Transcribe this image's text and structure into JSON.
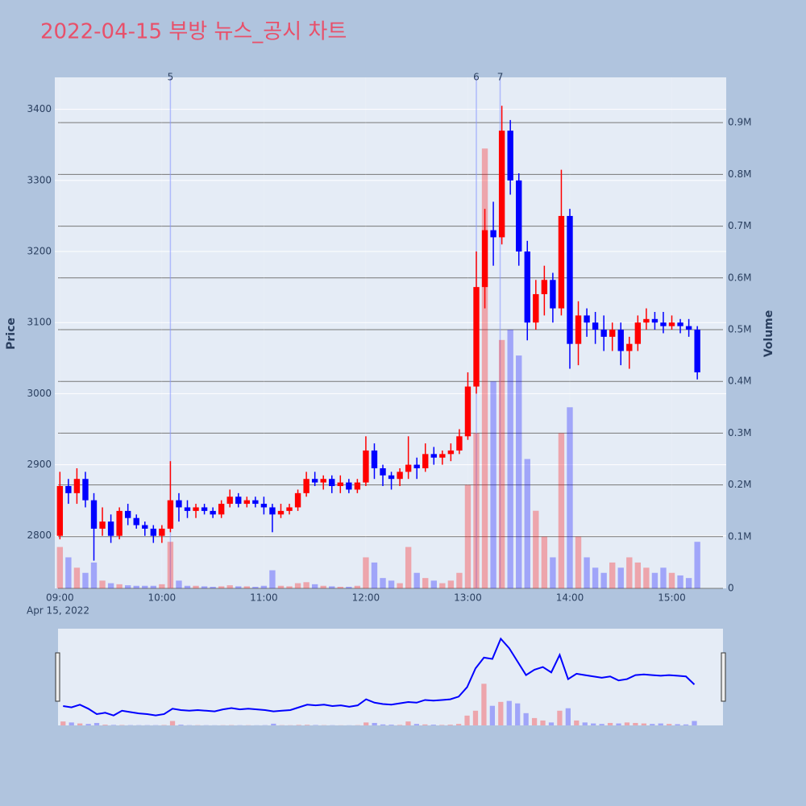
{
  "chart_data": {
    "type": "candlestick",
    "title": "2022-04-15 부방 뉴스_공시 차트",
    "y_label": "Price",
    "y2_label": "Volume",
    "x_date_label": "Apr 15, 2022",
    "increasing_color": "#ff0000",
    "decreasing_color": "#0000ff",
    "x": [
      "09:00",
      "09:05",
      "09:10",
      "09:15",
      "09:20",
      "09:25",
      "09:30",
      "09:35",
      "09:40",
      "09:45",
      "09:50",
      "09:55",
      "10:00",
      "10:05",
      "10:10",
      "10:15",
      "10:20",
      "10:25",
      "10:30",
      "10:35",
      "10:40",
      "10:45",
      "10:50",
      "10:55",
      "11:00",
      "11:05",
      "11:10",
      "11:15",
      "11:20",
      "11:25",
      "11:30",
      "11:35",
      "11:40",
      "11:45",
      "11:50",
      "11:55",
      "12:00",
      "12:05",
      "12:10",
      "12:15",
      "12:20",
      "12:25",
      "12:30",
      "12:35",
      "12:40",
      "12:45",
      "12:50",
      "12:55",
      "13:00",
      "13:05",
      "13:10",
      "13:15",
      "13:20",
      "13:25",
      "13:30",
      "13:35",
      "13:40",
      "13:45",
      "13:50",
      "13:55",
      "14:00",
      "14:05",
      "14:10",
      "14:15",
      "14:20",
      "14:25",
      "14:30",
      "14:35",
      "14:40",
      "14:45",
      "14:50",
      "14:55",
      "15:00",
      "15:05",
      "15:10",
      "15:15"
    ],
    "open": [
      2800,
      2870,
      2860,
      2880,
      2850,
      2810,
      2820,
      2800,
      2835,
      2825,
      2815,
      2810,
      2800,
      2810,
      2850,
      2840,
      2835,
      2840,
      2835,
      2830,
      2845,
      2855,
      2845,
      2850,
      2845,
      2840,
      2830,
      2835,
      2840,
      2860,
      2880,
      2875,
      2880,
      2870,
      2875,
      2865,
      2875,
      2920,
      2895,
      2885,
      2880,
      2890,
      2900,
      2895,
      2915,
      2910,
      2915,
      2920,
      2940,
      3010,
      3150,
      3230,
      3220,
      3370,
      3300,
      3200,
      3100,
      3140,
      3160,
      3120,
      3250,
      3070,
      3110,
      3100,
      3090,
      3080,
      3090,
      3060,
      3070,
      3100,
      3105,
      3100,
      3095,
      3100,
      3095,
      3090
    ],
    "high": [
      2890,
      2880,
      2895,
      2890,
      2860,
      2840,
      2830,
      2840,
      2845,
      2830,
      2820,
      2815,
      2815,
      2905,
      2860,
      2850,
      2845,
      2845,
      2840,
      2850,
      2865,
      2860,
      2855,
      2855,
      2855,
      2845,
      2845,
      2845,
      2865,
      2890,
      2890,
      2885,
      2885,
      2885,
      2880,
      2880,
      2940,
      2930,
      2900,
      2890,
      2895,
      2940,
      2910,
      2930,
      2925,
      2920,
      2930,
      2950,
      3030,
      3200,
      3260,
      3270,
      3405,
      3385,
      3310,
      3215,
      3160,
      3180,
      3170,
      3315,
      3260,
      3130,
      3120,
      3115,
      3110,
      3100,
      3100,
      3080,
      3110,
      3120,
      3115,
      3115,
      3110,
      3105,
      3105,
      3095
    ],
    "low": [
      2795,
      2845,
      2845,
      2840,
      2765,
      2800,
      2790,
      2795,
      2815,
      2810,
      2800,
      2790,
      2790,
      2805,
      2820,
      2825,
      2825,
      2830,
      2825,
      2825,
      2840,
      2840,
      2840,
      2840,
      2830,
      2805,
      2825,
      2830,
      2835,
      2855,
      2870,
      2865,
      2860,
      2860,
      2860,
      2860,
      2870,
      2880,
      2870,
      2865,
      2870,
      2880,
      2880,
      2890,
      2900,
      2900,
      2905,
      2915,
      2935,
      3000,
      3120,
      3180,
      3210,
      3280,
      3180,
      3075,
      3090,
      3110,
      3100,
      3110,
      3035,
      3040,
      3080,
      3070,
      3060,
      3060,
      3040,
      3035,
      3060,
      3090,
      3090,
      3085,
      3090,
      3085,
      3080,
      3020
    ],
    "close": [
      2870,
      2860,
      2880,
      2850,
      2810,
      2820,
      2800,
      2835,
      2825,
      2815,
      2810,
      2800,
      2810,
      2850,
      2840,
      2835,
      2840,
      2835,
      2830,
      2845,
      2855,
      2845,
      2850,
      2845,
      2840,
      2830,
      2835,
      2840,
      2860,
      2880,
      2875,
      2880,
      2870,
      2875,
      2865,
      2875,
      2920,
      2895,
      2885,
      2880,
      2890,
      2900,
      2895,
      2915,
      2910,
      2915,
      2920,
      2940,
      3010,
      3150,
      3230,
      3220,
      3370,
      3300,
      3200,
      3100,
      3140,
      3160,
      3120,
      3250,
      3070,
      3110,
      3100,
      3090,
      3080,
      3090,
      3060,
      3070,
      3100,
      3105,
      3100,
      3095,
      3100,
      3095,
      3090,
      3030
    ],
    "volume": [
      80000,
      60000,
      40000,
      30000,
      50000,
      15000,
      10000,
      8000,
      6000,
      5000,
      5000,
      5000,
      8000,
      90000,
      15000,
      5000,
      5000,
      4000,
      3000,
      4000,
      6000,
      4000,
      4000,
      3000,
      5000,
      35000,
      5000,
      4000,
      10000,
      12000,
      8000,
      5000,
      4000,
      3000,
      3000,
      5000,
      60000,
      50000,
      20000,
      15000,
      10000,
      80000,
      30000,
      20000,
      15000,
      10000,
      15000,
      30000,
      200000,
      300000,
      850000,
      400000,
      480000,
      500000,
      450000,
      250000,
      150000,
      100000,
      60000,
      300000,
      350000,
      100000,
      60000,
      40000,
      30000,
      50000,
      40000,
      60000,
      50000,
      40000,
      30000,
      40000,
      30000,
      25000,
      20000,
      90000
    ],
    "xlim": [
      "08:57",
      "15:32"
    ],
    "xticks": [
      "09:00",
      "10:00",
      "11:00",
      "12:00",
      "13:00",
      "14:00",
      "15:00"
    ],
    "ylim": [
      2726,
      3445
    ],
    "yticks": [
      2800,
      2900,
      3000,
      3100,
      3200,
      3300,
      3400
    ],
    "y2lim": [
      0,
      987500
    ],
    "y2ticks": [
      0,
      {
        "value": 100000,
        "label": "0.1M"
      },
      {
        "value": 200000,
        "label": "0.2M"
      },
      {
        "value": 300000,
        "label": "0.3M"
      },
      {
        "value": 400000,
        "label": "0.4M"
      },
      {
        "value": 500000,
        "label": "0.5M"
      },
      {
        "value": 600000,
        "label": "0.6M"
      },
      {
        "value": 700000,
        "label": "0.7M"
      },
      {
        "value": 800000,
        "label": "0.8M"
      },
      {
        "value": 900000,
        "label": "0.9M"
      }
    ],
    "news": [
      {
        "x": "10:05",
        "label": "5"
      },
      {
        "x": "13:05",
        "label": "6"
      },
      {
        "x": "13:19",
        "label": "7"
      }
    ]
  }
}
